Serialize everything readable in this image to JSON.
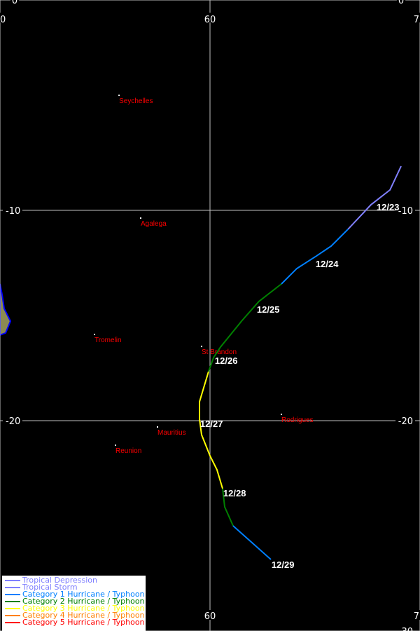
{
  "map": {
    "lon_range": [
      50,
      70
    ],
    "lat_range": [
      0,
      -30
    ],
    "lon_gridlines": [
      50,
      60,
      70
    ],
    "lat_gridlines": [
      0,
      -10,
      -20,
      -30
    ],
    "top_labels": [
      {
        "text": "0",
        "lon": 50.7
      },
      {
        "text": "0",
        "lon": 69.1
      }
    ],
    "left_labels_row": [
      {
        "text": "0",
        "lon": 50
      },
      {
        "text": "60",
        "lon": 60
      },
      {
        "text": "7",
        "lon": 70
      }
    ],
    "bottom_labels_row": [
      {
        "text": "60",
        "lon": 60
      },
      {
        "text": "7",
        "lon": 70
      }
    ],
    "lat_labels": [
      {
        "text": "-10",
        "lat": -10
      },
      {
        "text": "-20",
        "lat": -20
      }
    ],
    "bottom_partial_label": "-30",
    "grid_color": "#c0c0c0",
    "land_color": "#8c8a52",
    "coast_color": "#0000ff",
    "land": [
      [
        50,
        -13.5
      ],
      [
        50.1,
        -14
      ],
      [
        50.2,
        -14.67
      ],
      [
        50.4,
        -15.07
      ],
      [
        50.5,
        -15.27
      ],
      [
        50.27,
        -15.83
      ],
      [
        50,
        -15.93
      ]
    ]
  },
  "places": [
    {
      "name": "Seychelles",
      "lon": 55.67,
      "lat": -4.53
    },
    {
      "name": "Agalega",
      "lon": 56.7,
      "lat": -10.37
    },
    {
      "name": "Tromelin",
      "lon": 54.5,
      "lat": -15.9
    },
    {
      "name": "St Brandon",
      "lon": 59.6,
      "lat": -16.47
    },
    {
      "name": "Mauritius",
      "lon": 57.5,
      "lat": -20.3
    },
    {
      "name": "Reunion",
      "lon": 55.5,
      "lat": -21.17
    },
    {
      "name": "Rodrigues",
      "lon": 63.4,
      "lat": -19.7
    }
  ],
  "track": [
    {
      "category": "Tropical Storm",
      "points": [
        [
          69.1,
          -7.9
        ],
        [
          68.57,
          -9.03
        ],
        [
          67.67,
          -9.73
        ],
        [
          66.57,
          -10.9
        ]
      ]
    },
    {
      "category": "Category 1 Hurricane / Typhoon",
      "points": [
        [
          66.57,
          -10.9
        ],
        [
          65.77,
          -11.7
        ],
        [
          65.07,
          -12.17
        ],
        [
          64.13,
          -12.77
        ],
        [
          63.4,
          -13.5
        ]
      ]
    },
    {
      "category": "Category 2 Hurricane / Typhoon",
      "points": [
        [
          63.4,
          -13.5
        ],
        [
          62.33,
          -14.33
        ],
        [
          61.5,
          -15.27
        ],
        [
          60.5,
          -16.5
        ],
        [
          60.17,
          -17
        ],
        [
          59.93,
          -17.67
        ]
      ]
    },
    {
      "category": "Category 3 Hurricane / Typhoon",
      "points": [
        [
          59.93,
          -17.67
        ],
        [
          59.5,
          -19.1
        ],
        [
          59.5,
          -19.93
        ],
        [
          59.6,
          -20.67
        ],
        [
          60,
          -21.67
        ],
        [
          60.33,
          -22.33
        ],
        [
          60.6,
          -23.23
        ]
      ]
    },
    {
      "category": "Category 2 Hurricane / Typhoon",
      "points": [
        [
          60.6,
          -23.23
        ],
        [
          60.7,
          -24.1
        ],
        [
          61.1,
          -25
        ]
      ]
    },
    {
      "category": "Category 1 Hurricane / Typhoon",
      "points": [
        [
          61.1,
          -25
        ],
        [
          62.9,
          -26.6
        ]
      ]
    }
  ],
  "dates": [
    {
      "label": "12/23",
      "lon": 67.93,
      "lat": -9.87
    },
    {
      "label": "12/24",
      "lon": 65.03,
      "lat": -12.57
    },
    {
      "label": "12/25",
      "lon": 62.23,
      "lat": -14.73
    },
    {
      "label": "12/26",
      "lon": 60.23,
      "lat": -17.17
    },
    {
      "label": "12/27",
      "lon": 59.53,
      "lat": -20.17
    },
    {
      "label": "12/28",
      "lon": 60.63,
      "lat": -23.47
    },
    {
      "label": "12/29",
      "lon": 62.93,
      "lat": -26.87
    }
  ],
  "legend": [
    {
      "label": "Tropical Depression",
      "color": "#8080ff"
    },
    {
      "label": "Tropical Storm",
      "color": "#8080ff"
    },
    {
      "label": "Category 1 Hurricane / Typhoon",
      "color": "#0080ff"
    },
    {
      "label": "Category 2 Hurricane / Typhoon",
      "color": "#008000"
    },
    {
      "label": "Category 3 Hurricane / Typhoon",
      "color": "#ffff00"
    },
    {
      "label": "Category 4 Hurricane / Typhoon",
      "color": "#ff8000"
    },
    {
      "label": "Category 5 Hurricane / Typhoon",
      "color": "#ff0000"
    }
  ]
}
